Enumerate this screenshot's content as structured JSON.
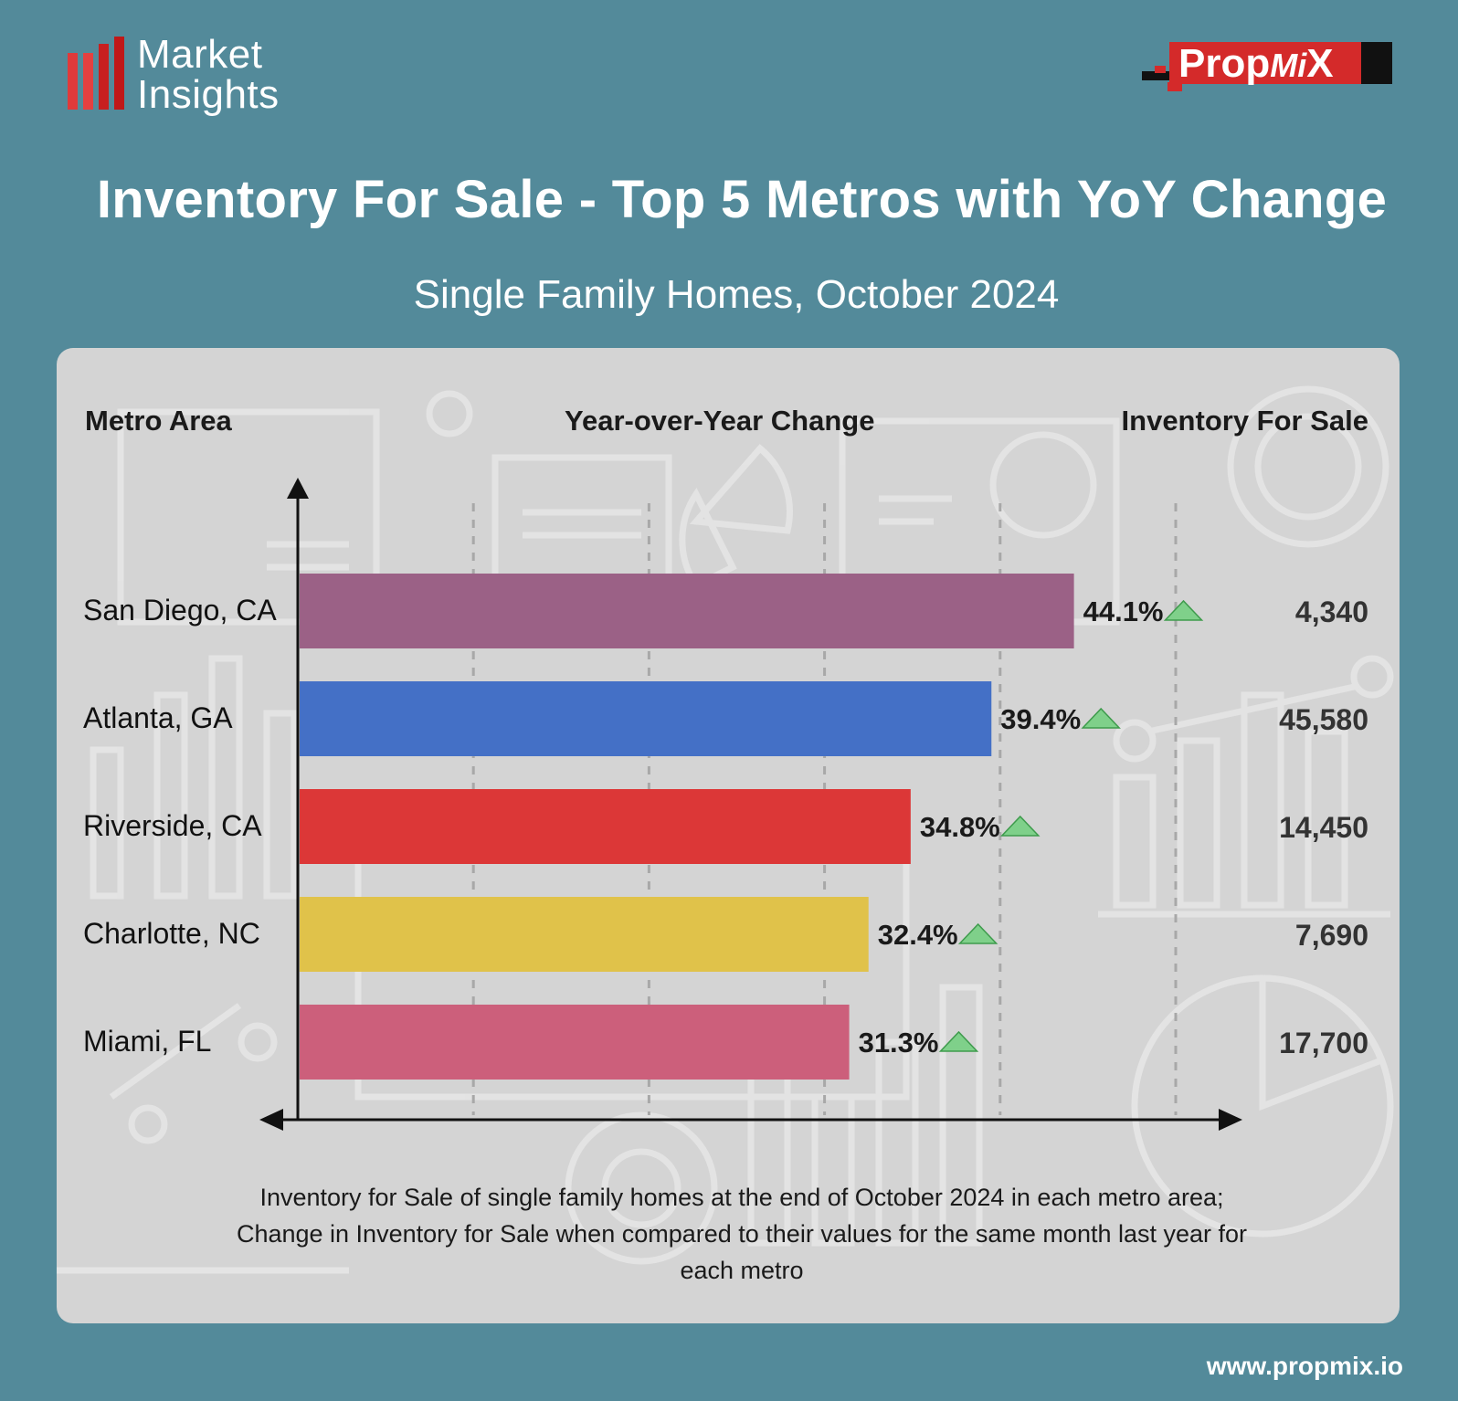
{
  "brand": {
    "line1": "Market",
    "line2": "Insights"
  },
  "logo": {
    "prefix": "Prop",
    "mi": "Mi",
    "x": "X"
  },
  "colors": {
    "background": "#538a9a",
    "panel": "#d4d4d4",
    "brand_bars": "#e03a3a",
    "up_arrow": "#7fd08a"
  },
  "chart_data": {
    "type": "bar",
    "orientation": "horizontal",
    "title": "Inventory For Sale - Top 5 Metros with YoY Change",
    "subtitle": "Single Family Homes, October 2024",
    "column_headers": {
      "metro": "Metro Area",
      "change": "Year-over-Year Change",
      "inventory": "Inventory For Sale"
    },
    "categories": [
      "San Diego, CA",
      "Atlanta, GA",
      "Riverside, CA",
      "Charlotte, NC",
      "Miami, FL"
    ],
    "values": [
      44.1,
      39.4,
      34.8,
      32.4,
      31.3
    ],
    "value_labels": [
      "44.1%",
      "39.4%",
      "34.8%",
      "32.4%",
      "31.3%"
    ],
    "inventory": [
      "4,340",
      "45,580",
      "14,450",
      "7,690",
      "17,700"
    ],
    "bar_colors": [
      "#9b6186",
      "#4470c6",
      "#dc3737",
      "#e0c24a",
      "#cc5f7b"
    ],
    "trend": [
      "up",
      "up",
      "up",
      "up",
      "up"
    ],
    "xlim": [
      0,
      50
    ],
    "grid": "vertical dashed",
    "legend": "none"
  },
  "footnote": {
    "line1": "Inventory for Sale of single family homes at the end of October 2024 in each metro area;",
    "line2": "Change in Inventory for Sale when compared to their values for the same month last year for",
    "line3": "each metro"
  },
  "url": "www.propmix.io"
}
